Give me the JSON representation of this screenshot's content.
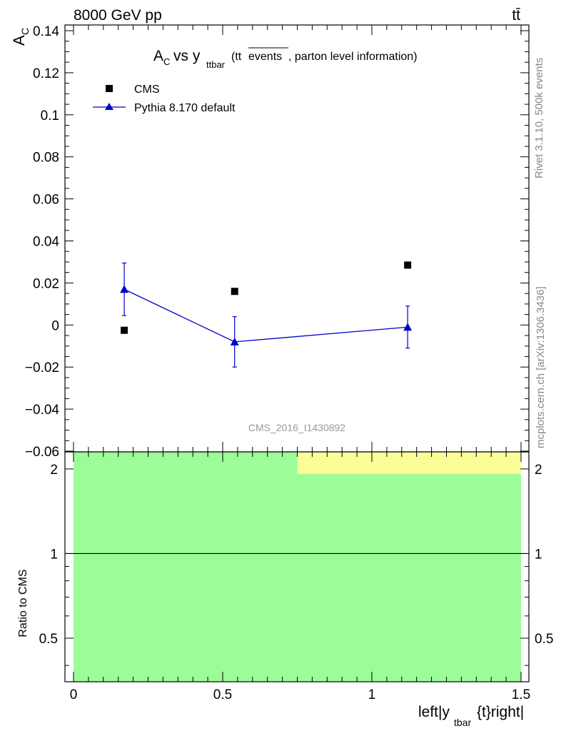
{
  "header": {
    "left": "8000 GeV pp",
    "right": "tt̄"
  },
  "side_labels": {
    "top": "Rivet 3.1.10,  500k events",
    "bottom": "mcplots.cern.ch [arXiv:1306.3436]"
  },
  "watermark": "CMS_2016_I1430892",
  "chart_data": [
    {
      "type": "scatter",
      "title_parts": {
        "main": "A",
        "main_sub": "C",
        "vs": " vs y",
        "vs_sub": "ttbar",
        "paren_open": " (tt",
        "overline": "events",
        "rest": ", parton level information)"
      },
      "ylabel": {
        "main": "A",
        "sub": "C"
      },
      "ylim": [
        -0.06,
        0.14
      ],
      "xlim": [
        -0.03,
        1.5
      ],
      "y_ticks": [
        -0.06,
        -0.04,
        -0.02,
        0,
        0.02,
        0.04,
        0.06,
        0.08,
        0.1,
        0.12,
        0.14
      ],
      "y_tick_labels": [
        "−0.06",
        "−0.04",
        "−0.02",
        "0",
        "0.02",
        "0.04",
        "0.06",
        "0.08",
        "0.1",
        "0.12",
        "0.14"
      ],
      "legend_position": "top-left",
      "series": [
        {
          "name": "CMS",
          "marker": "square",
          "color": "#000000",
          "x": [
            0.17,
            0.54,
            1.12
          ],
          "y": [
            -0.0025,
            0.016,
            0.0285
          ]
        },
        {
          "name": "Pythia 8.170 default",
          "marker": "triangle",
          "color": "#0000cc",
          "line": true,
          "x": [
            0.17,
            0.54,
            1.12
          ],
          "y": [
            0.017,
            -0.008,
            -0.001
          ],
          "yerr": [
            0.0125,
            0.012,
            0.01
          ]
        }
      ]
    },
    {
      "type": "ratio",
      "ylabel": "Ratio to CMS",
      "xlabel": "left|y",
      "xlabel_sub": "tbar",
      "xlabel_rest": "{t}right|",
      "ylim": [
        0.35,
        2.3
      ],
      "log_y": true,
      "y_tick_labels": [
        {
          "value": 0.5,
          "label": "0.5"
        },
        {
          "value": 1,
          "label": "1"
        },
        {
          "value": 2,
          "label": "2"
        }
      ],
      "x_tick_labels": [
        {
          "value": 0,
          "label": "0"
        },
        {
          "value": 0.5,
          "label": "0.5"
        },
        {
          "value": 1,
          "label": "1"
        },
        {
          "value": 1.5,
          "label": "1.5"
        }
      ],
      "bands": [
        {
          "color": "#9cfc98",
          "x0": 0,
          "x1": 1.5,
          "y0": 0.35,
          "y1": 2.3
        },
        {
          "color": "#fcfc98",
          "x0": 0.75,
          "x1": 1.5,
          "y0": 1.92,
          "y1": 2.3
        }
      ],
      "reference": 1
    }
  ]
}
